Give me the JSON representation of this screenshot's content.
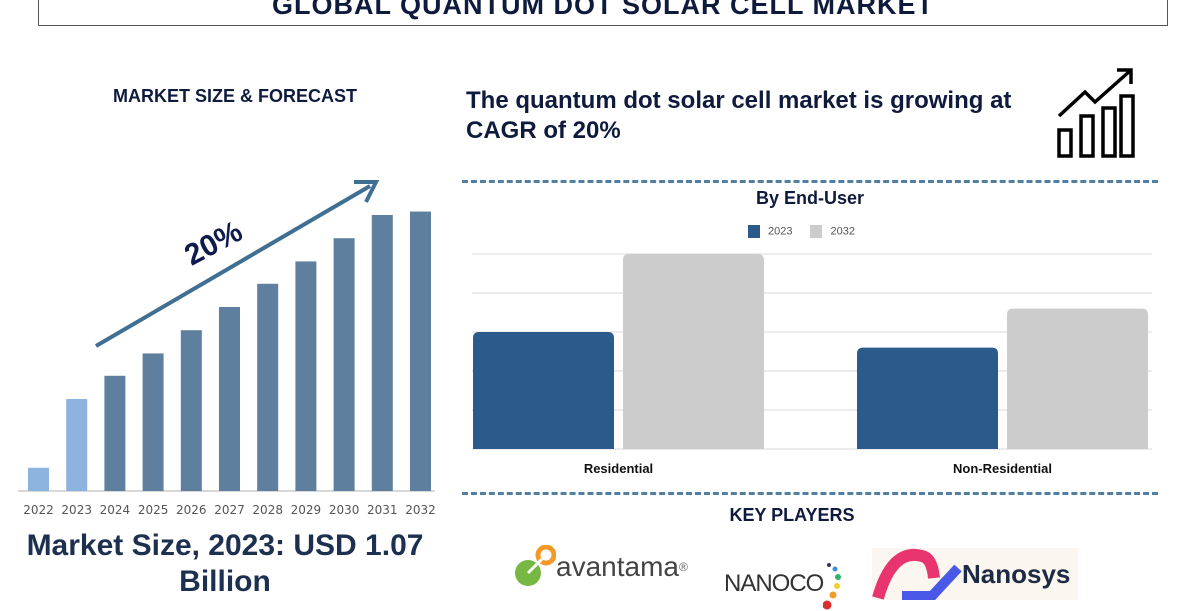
{
  "title": "GLOBAL QUANTUM DOT SOLAR CELL MARKET",
  "left": {
    "heading": "MARKET SIZE & FORECAST",
    "cagr_label": "20%",
    "market_size": "Market Size, 2023: USD 1.07 Billion"
  },
  "right": {
    "headline": "The quantum dot solar cell market is growing at CAGR of 20%",
    "key_players_heading": "KEY PLAYERS",
    "key_players": [
      {
        "name": "avantama",
        "mark": "®"
      },
      {
        "name": "NANOCO"
      },
      {
        "name": "Nanosys"
      }
    ]
  },
  "chart_data": [
    {
      "type": "bar",
      "title": "",
      "categories": [
        "2022",
        "2023",
        "2024",
        "2025",
        "2026",
        "2027",
        "2028",
        "2029",
        "2030",
        "2031",
        "2032"
      ],
      "values": [
        0.27,
        1.07,
        1.34,
        1.6,
        1.87,
        2.14,
        2.41,
        2.67,
        2.94,
        3.21,
        3.25
      ],
      "ylabel": "",
      "xlabel": "",
      "grid": false,
      "colors": {
        "historic": "#8db4de",
        "forecast": "#5f7f9f"
      },
      "historic_count": 2,
      "annotation": "20%"
    },
    {
      "type": "bar",
      "title": "By End-User",
      "categories": [
        "Residential",
        "Non-Residential"
      ],
      "series": [
        {
          "name": "2023",
          "values": [
            3,
            2.6
          ],
          "color": "#2a5b8a"
        },
        {
          "name": "2032",
          "values": [
            5,
            3.6
          ],
          "color": "#cccccc"
        }
      ],
      "ylim": [
        0,
        5
      ],
      "grid": true,
      "legend": "top"
    }
  ]
}
